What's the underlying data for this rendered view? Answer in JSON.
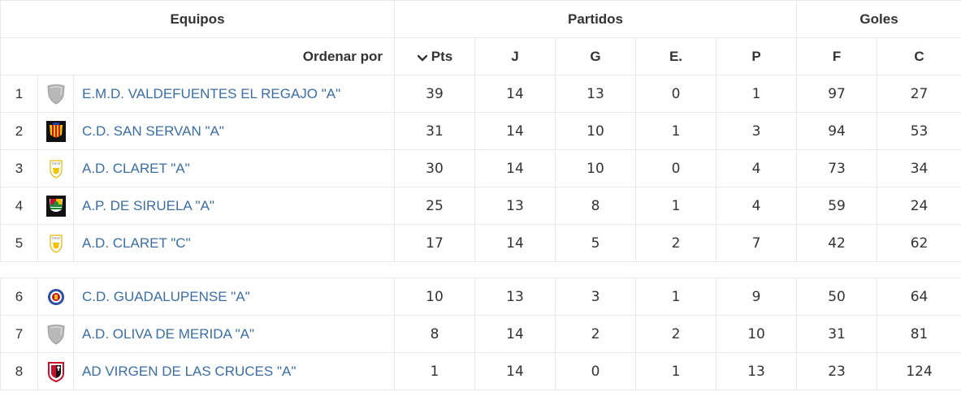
{
  "headers": {
    "teams": "Equipos",
    "matches": "Partidos",
    "goals": "Goles",
    "order_by": "Ordenar por",
    "pts": "Pts",
    "j": "J",
    "g": "G",
    "e": "E.",
    "p": "P",
    "f": "F",
    "c": "C"
  },
  "rows": [
    {
      "pos": "1",
      "name": "E.M.D. VALDEFUENTES EL REGAJO \"A\"",
      "pts": "39",
      "j": "14",
      "g": "13",
      "e": "0",
      "p": "1",
      "f": "97",
      "c": "27",
      "logo": "shield-gray-icon"
    },
    {
      "pos": "2",
      "name": "C.D. SAN SERVAN \"A\"",
      "pts": "31",
      "j": "14",
      "g": "10",
      "e": "1",
      "p": "3",
      "f": "94",
      "c": "53",
      "logo": "crest-striped-icon"
    },
    {
      "pos": "3",
      "name": "A.D. CLARET \"A\"",
      "pts": "30",
      "j": "14",
      "g": "10",
      "e": "0",
      "p": "4",
      "f": "73",
      "c": "34",
      "logo": "claret-crest-icon"
    },
    {
      "pos": "4",
      "name": "A.P. DE SIRUELA \"A\"",
      "pts": "25",
      "j": "13",
      "g": "8",
      "e": "1",
      "p": "4",
      "f": "59",
      "c": "24",
      "logo": "crest-green-icon"
    },
    {
      "pos": "5",
      "name": "A.D. CLARET \"C\"",
      "pts": "17",
      "j": "14",
      "g": "5",
      "e": "2",
      "p": "7",
      "f": "42",
      "c": "62",
      "logo": "claret-crest-icon"
    }
  ],
  "rows2": [
    {
      "pos": "6",
      "name": "C.D. GUADALUPENSE \"A\"",
      "pts": "10",
      "j": "13",
      "g": "3",
      "e": "1",
      "p": "9",
      "f": "50",
      "c": "64",
      "logo": "round-crest-icon"
    },
    {
      "pos": "7",
      "name": "A.D. OLIVA DE MERIDA \"A\"",
      "pts": "8",
      "j": "14",
      "g": "2",
      "e": "2",
      "p": "10",
      "f": "31",
      "c": "81",
      "logo": "shield-gray-icon"
    },
    {
      "pos": "8",
      "name": "AD VIRGEN DE LAS CRUCES \"A\"",
      "pts": "1",
      "j": "14",
      "g": "0",
      "e": "1",
      "p": "13",
      "f": "23",
      "c": "124",
      "logo": "crest-red-icon"
    }
  ],
  "colors": {
    "link": "#3a6ea5",
    "border": "#e8e8e8",
    "text": "#333333"
  }
}
